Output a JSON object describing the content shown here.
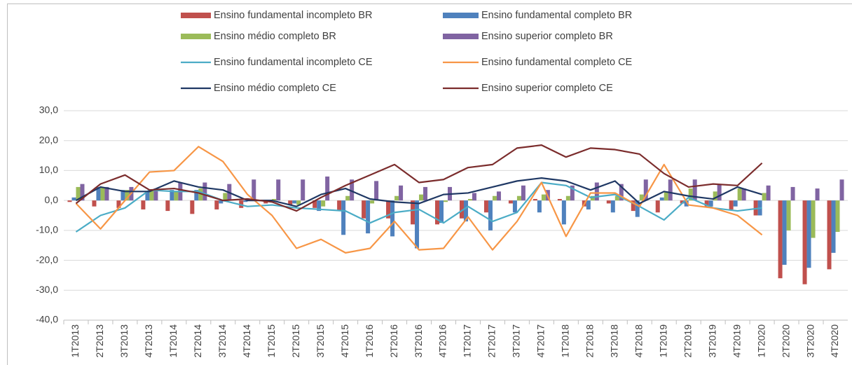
{
  "chart_data": {
    "type": "bar_line",
    "categories": [
      "1T2013",
      "2T2013",
      "3T2013",
      "4T2013",
      "1T2014",
      "2T2014",
      "3T2014",
      "4T2014",
      "1T2015",
      "2T2015",
      "3T2015",
      "4T2015",
      "1T2016",
      "2T2016",
      "3T2016",
      "4T2016",
      "1T2017",
      "2T2017",
      "3T2017",
      "4T2017",
      "1T2018",
      "2T2018",
      "3T2018",
      "4T2018",
      "1T2019",
      "2T2019",
      "3T2019",
      "4T2019",
      "1T2020",
      "2T2020",
      "3T2020",
      "4T2020"
    ],
    "ylim": [
      -40,
      30
    ],
    "yticks": [
      {
        "value": -40,
        "label": "-40,0"
      },
      {
        "value": -30,
        "label": "-30,0"
      },
      {
        "value": -20,
        "label": "-20,0"
      },
      {
        "value": -10,
        "label": "-10,0"
      },
      {
        "value": 0,
        "label": "0,0"
      },
      {
        "value": 10,
        "label": "10,0"
      },
      {
        "value": 20,
        "label": "20,0"
      },
      {
        "value": 30,
        "label": "30,0"
      }
    ],
    "grid": true,
    "series": [
      {
        "name": "Ensino fundamental incompleto BR",
        "type": "bar",
        "color": "#c0504d",
        "values": [
          -0.5,
          -2,
          -2.5,
          -3,
          -3.5,
          -4.5,
          -3,
          -2.5,
          -1,
          -1.5,
          -2.5,
          -3.5,
          -6,
          -6,
          -8,
          -8,
          -6,
          -4,
          -1,
          0.5,
          0.5,
          -2,
          -1,
          -3.5,
          -4,
          -1,
          -2,
          -3,
          -5,
          -26,
          -28,
          -23
        ]
      },
      {
        "name": "Ensino fundamental completo BR",
        "type": "bar",
        "color": "#4f81bd",
        "values": [
          1,
          4.5,
          3.5,
          3,
          3.5,
          3.5,
          -1,
          -0.5,
          -0.5,
          -1,
          -3.5,
          -11.5,
          -11,
          -12,
          -16,
          -7.5,
          -7,
          -10,
          -4,
          -4,
          -8,
          -3,
          -4,
          -5.5,
          1,
          -2,
          -2,
          -2,
          -5,
          -21.5,
          -22.5,
          -17.5
        ]
      },
      {
        "name": "Ensino médio completo BR",
        "type": "bar",
        "color": "#9bbb59",
        "values": [
          4.5,
          4.5,
          3.5,
          3.5,
          3,
          4,
          2.5,
          0.5,
          0.5,
          -1.5,
          -2,
          1.5,
          -1,
          1.5,
          2,
          -0.5,
          0.5,
          1.5,
          1.5,
          2,
          1.5,
          1.5,
          1.5,
          2,
          3,
          4,
          3,
          4,
          2.5,
          -10,
          -12.5,
          -10.5
        ]
      },
      {
        "name": "Ensino superior completo BR",
        "type": "bar",
        "color": "#8064a2",
        "values": [
          5.5,
          4.5,
          4.5,
          4,
          6,
          6,
          5.5,
          7,
          7,
          7,
          8,
          7,
          6.5,
          5,
          4.5,
          4.5,
          2.5,
          3,
          5,
          3.5,
          5,
          6,
          5.5,
          7,
          7,
          7,
          5.5,
          4,
          5,
          4.5,
          4,
          7
        ]
      },
      {
        "name": "Ensino fundamental incompleto CE",
        "type": "line",
        "color": "#4bacc6",
        "values": [
          -10.5,
          -5,
          -2.5,
          3.5,
          3,
          3,
          0,
          -2,
          -1.5,
          -2.5,
          -3,
          -3.5,
          -7.5,
          -4,
          -3,
          -7.5,
          -2,
          -7,
          -4,
          6,
          5,
          1,
          2,
          -2,
          -6.5,
          1,
          -2.5,
          -3.5,
          -2.5,
          null,
          null,
          null
        ]
      },
      {
        "name": "Ensino fundamental completo CE",
        "type": "line",
        "color": "#f79646",
        "values": [
          -1,
          -9.5,
          0,
          9.5,
          10,
          18,
          13,
          2,
          -5,
          -16,
          -13,
          -17.5,
          -16,
          -7,
          -16.5,
          -16,
          -5.5,
          -16.5,
          -7,
          6,
          -12,
          2.5,
          2.5,
          -2,
          12,
          -1.5,
          -2.5,
          -5,
          -11.5,
          null,
          null,
          null
        ]
      },
      {
        "name": "Ensino médio completo CE",
        "type": "line",
        "color": "#1f3864",
        "values": [
          0,
          4.5,
          3,
          3,
          6.5,
          4.5,
          3.5,
          0,
          0,
          -2,
          2,
          4,
          0.5,
          -0.5,
          -1,
          2,
          2.5,
          4.5,
          6.5,
          7.5,
          6.5,
          3.5,
          6.5,
          -1,
          3,
          1.5,
          0.5,
          4.5,
          2,
          null,
          null,
          null
        ]
      },
      {
        "name": "Ensino superior completo CE",
        "type": "line",
        "color": "#7b2c2c",
        "values": [
          -1,
          5.5,
          8.5,
          3.5,
          4,
          2.5,
          0,
          0.5,
          -0.5,
          -3.5,
          1,
          5,
          8.5,
          12,
          6,
          7,
          11,
          12,
          17.5,
          18.5,
          14.5,
          17.5,
          17,
          15.5,
          9,
          4.5,
          5.5,
          5,
          12.5,
          null,
          null,
          null
        ]
      }
    ]
  }
}
